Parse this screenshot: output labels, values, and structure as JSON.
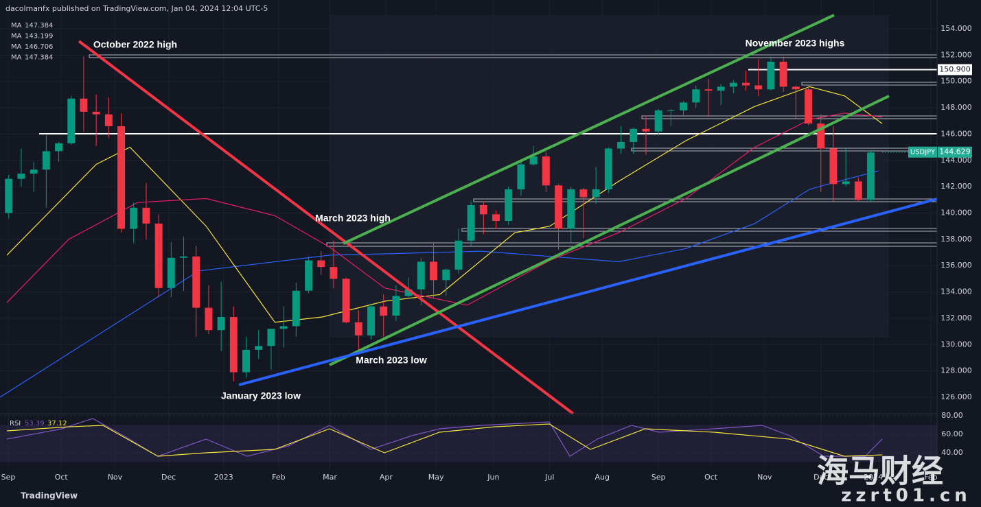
{
  "chart_data": {
    "type": "candlestick",
    "title": "dacolmanfx published on TradingView.com, Jan 04, 2024 12:04 UTC-5",
    "symbol": "USDJPY",
    "last_price": 144.629,
    "price_level": {
      "value": 150.9,
      "label": "150.900"
    },
    "up_color": "#089981",
    "down_color": "#f23645",
    "xlim": [
      -0.7,
      74.3
    ],
    "xticks": [
      {
        "value": -0.04,
        "label": "Sep"
      },
      {
        "value": 4.2,
        "label": "Oct"
      },
      {
        "value": 8.5,
        "label": "Nov"
      },
      {
        "value": 12.8,
        "label": "Dec"
      },
      {
        "value": 17.2,
        "label": "2023"
      },
      {
        "value": 21.6,
        "label": "Feb"
      },
      {
        "value": 25.7,
        "label": "Mar"
      },
      {
        "value": 30.2,
        "label": "Apr"
      },
      {
        "value": 34.2,
        "label": "May"
      },
      {
        "value": 38.8,
        "label": "Jun"
      },
      {
        "value": 43.3,
        "label": "Jul"
      },
      {
        "value": 47.5,
        "label": "Aug"
      },
      {
        "value": 52.0,
        "label": "Sep"
      },
      {
        "value": 56.2,
        "label": "Oct"
      },
      {
        "value": 60.5,
        "label": "Nov"
      },
      {
        "value": 65.0,
        "label": "Dec"
      },
      {
        "value": 69.2,
        "label": "2024"
      },
      {
        "value": 73.8,
        "label": "Feb"
      }
    ],
    "ylim": [
      124.75,
      156.19
    ],
    "yticks": [
      {
        "value": 126,
        "label": "126.000"
      },
      {
        "value": 128,
        "label": "128.000"
      },
      {
        "value": 130,
        "label": "130.000"
      },
      {
        "value": 132,
        "label": "132.000"
      },
      {
        "value": 134,
        "label": "134.000"
      },
      {
        "value": 136,
        "label": "136.000"
      },
      {
        "value": 138,
        "label": "138.000"
      },
      {
        "value": 140,
        "label": "140.000"
      },
      {
        "value": 142,
        "label": "142.000"
      },
      {
        "value": 144,
        "label": "144.000"
      },
      {
        "value": 146,
        "label": "146.000"
      },
      {
        "value": 148,
        "label": "148.000"
      },
      {
        "value": 150,
        "label": "150.000"
      },
      {
        "value": 152,
        "label": "152.000"
      },
      {
        "value": 154,
        "label": "154.000"
      }
    ],
    "candles": {
      "x": [
        0,
        1,
        2,
        3,
        4,
        5,
        6,
        7,
        8,
        9,
        10,
        11,
        12,
        13,
        14,
        15,
        16,
        17,
        18,
        19,
        20,
        21,
        22,
        23,
        24,
        25,
        26,
        27,
        28,
        29,
        30,
        31,
        32,
        33,
        34,
        35,
        36,
        37,
        38,
        39,
        40,
        41,
        42,
        43,
        44,
        45,
        46,
        47,
        48,
        49,
        50,
        51,
        52,
        53,
        54,
        55,
        56,
        57,
        58,
        59,
        60,
        61,
        62,
        63,
        64,
        65,
        66,
        67,
        68,
        69
      ],
      "open": [
        140.0,
        142.6,
        143.0,
        143.3,
        144.7,
        145.3,
        148.7,
        147.7,
        147.5,
        146.6,
        138.8,
        140.4,
        139.2,
        134.3,
        136.6,
        136.7,
        132.8,
        131.1,
        132.1,
        127.9,
        129.6,
        129.9,
        131.2,
        131.4,
        134.1,
        136.4,
        135.9,
        135.0,
        131.7,
        130.7,
        132.9,
        132.2,
        133.7,
        134.2,
        136.3,
        134.9,
        135.7,
        137.9,
        140.6,
        139.9,
        139.4,
        141.8,
        143.7,
        144.3,
        142.1,
        138.8,
        141.8,
        141.2,
        141.8,
        144.9,
        145.4,
        146.4,
        146.2,
        147.8,
        147.8,
        148.4,
        149.4,
        149.3,
        149.6,
        149.9,
        149.7,
        149.4,
        151.5,
        149.6,
        149.4,
        146.8,
        144.9,
        142.2,
        142.4,
        141.0
      ],
      "high": [
        142.9,
        144.9,
        143.9,
        145.9,
        145.4,
        148.9,
        151.9,
        149.0,
        148.8,
        147.6,
        140.8,
        142.3,
        139.9,
        137.8,
        138.2,
        137.5,
        134.5,
        134.8,
        132.9,
        130.6,
        131.1,
        131.2,
        132.9,
        134.7,
        136.7,
        137.1,
        137.9,
        135.1,
        132.6,
        133.1,
        133.8,
        134.5,
        135.1,
        136.6,
        137.8,
        135.8,
        138.8,
        140.9,
        140.9,
        140.2,
        142.0,
        143.9,
        145.1,
        144.7,
        142.2,
        142.0,
        141.9,
        143.5,
        145.0,
        146.6,
        146.5,
        147.4,
        147.9,
        147.9,
        148.5,
        149.7,
        150.2,
        149.8,
        150.1,
        150.8,
        151.7,
        151.9,
        151.9,
        149.7,
        149.7,
        147.5,
        146.6,
        144.9,
        142.7,
        144.8
      ],
      "low": [
        139.6,
        142.0,
        141.6,
        140.4,
        143.9,
        145.2,
        146.2,
        145.1,
        145.7,
        138.5,
        137.7,
        138.0,
        133.6,
        133.6,
        134.1,
        130.6,
        130.8,
        129.5,
        127.2,
        127.5,
        128.9,
        128.1,
        129.8,
        130.6,
        133.9,
        135.3,
        134.3,
        131.6,
        129.6,
        130.4,
        130.6,
        131.8,
        133.5,
        133.0,
        133.5,
        133.7,
        135.4,
        137.5,
        138.4,
        138.8,
        139.1,
        141.3,
        143.6,
        141.6,
        137.2,
        137.7,
        138.1,
        140.7,
        141.5,
        144.5,
        144.5,
        144.4,
        145.9,
        146.6,
        147.3,
        148.0,
        147.3,
        148.2,
        149.1,
        149.3,
        148.9,
        149.3,
        149.2,
        147.2,
        146.7,
        141.6,
        140.9,
        142.0,
        140.9,
        140.8
      ],
      "close": [
        142.6,
        143.0,
        143.3,
        144.7,
        145.3,
        148.7,
        147.7,
        147.5,
        146.6,
        138.8,
        140.4,
        139.2,
        134.3,
        136.6,
        136.7,
        132.8,
        131.1,
        132.1,
        127.9,
        129.6,
        129.9,
        131.2,
        131.4,
        134.1,
        136.4,
        135.9,
        135.0,
        131.7,
        130.7,
        132.9,
        132.2,
        133.7,
        134.2,
        136.3,
        134.9,
        135.7,
        137.9,
        140.6,
        139.9,
        139.4,
        141.8,
        143.7,
        144.3,
        142.1,
        138.8,
        141.8,
        141.2,
        141.8,
        144.9,
        145.4,
        146.4,
        146.2,
        147.8,
        147.8,
        148.4,
        149.4,
        149.3,
        149.6,
        149.9,
        149.7,
        149.4,
        151.5,
        149.6,
        149.4,
        146.8,
        144.9,
        142.2,
        142.4,
        141.0,
        144.6
      ]
    },
    "moving_averages": [
      {
        "name": "MA",
        "color": "#f23645",
        "last": 147.384,
        "x": [],
        "values": []
      },
      {
        "name": "MA",
        "color": "#2962ff",
        "last": 143.199,
        "x": [
          -0.7,
          15.2,
          25.7,
          30.1,
          37.8,
          48.8,
          54.2,
          59.7,
          64.1,
          65.2,
          69.6
        ],
        "values": [
          126.0,
          135.6,
          136.8,
          136.9,
          137.1,
          136.3,
          137.3,
          139.2,
          141.8,
          142.1,
          143.2
        ]
      },
      {
        "name": "MA",
        "color": "#f7e43c",
        "last": 146.706,
        "x": [
          -0.15,
          7.0,
          9.7,
          15.8,
          21.3,
          25.1,
          30.1,
          34.5,
          40.5,
          43.3,
          48.8,
          54.2,
          59.7,
          64.1,
          66.9,
          69.9
        ],
        "values": [
          136.8,
          143.7,
          145.0,
          139.0,
          131.7,
          132.1,
          133.3,
          133.8,
          138.5,
          139.0,
          142.4,
          145.5,
          148.1,
          149.6,
          148.9,
          146.8
        ]
      },
      {
        "name": "MA",
        "color": "#e91e63",
        "last": 147.384,
        "x": [
          -0.15,
          4.8,
          10.3,
          15.8,
          21.3,
          25.7,
          30.1,
          36.7,
          43.3,
          48.8,
          54.2,
          59.7,
          64.1,
          66.9,
          69.9
        ],
        "values": [
          133.2,
          138.0,
          140.8,
          141.1,
          139.8,
          137.4,
          134.3,
          133.0,
          136.4,
          138.5,
          141.1,
          145.0,
          147.1,
          147.6,
          147.3
        ]
      }
    ],
    "annotations": [
      "October 2022 high",
      "November 2023 highs",
      "March 2023 high",
      "March 2023 low",
      "January 2023 low"
    ],
    "rsi": {
      "name": "RSI",
      "value": 53.39,
      "ma_value": 37.12,
      "color": "#7e57c2",
      "ma_color": "#f7e43c",
      "ylim": [
        19.3,
        82.2
      ],
      "band": [
        30,
        70
      ],
      "yticks": [
        {
          "value": 80,
          "label": "80.00"
        },
        {
          "value": 60,
          "label": "60.00"
        },
        {
          "value": 40,
          "label": "40.00"
        }
      ],
      "x": [
        -0.15,
        4.25,
        6.72,
        9.19,
        11.94,
        15.79,
        19.08,
        22.38,
        25.68,
        28.97,
        32.27,
        34.47,
        37.77,
        43.26,
        44.91,
        47.11,
        49.85,
        52.05,
        56.45,
        60.29,
        62.49,
        65.24,
        68.54,
        69.91
      ],
      "values": [
        54.8,
        65.9,
        77.0,
        58.5,
        36.3,
        54.8,
        36.3,
        47.4,
        69.6,
        43.7,
        58.5,
        65.9,
        69.6,
        73.3,
        36.3,
        54.8,
        69.6,
        62.2,
        65.9,
        69.6,
        58.5,
        36.3,
        36.3,
        54.8
      ],
      "ma_x": [
        -0.15,
        4.8,
        7.54,
        11.94,
        15.79,
        21.28,
        25.68,
        30.07,
        34.47,
        38.86,
        43.26,
        46.56,
        50.95,
        56.45,
        62.49,
        66.89,
        69.91
      ],
      "ma_values": [
        63.7,
        68.1,
        69.6,
        36.3,
        40.0,
        43.7,
        65.9,
        40.0,
        62.2,
        68.1,
        71.1,
        43.7,
        65.9,
        62.2,
        54.8,
        36.3,
        37.8
      ]
    },
    "branding": "TradingView",
    "watermark": [
      "海马财经",
      "zzrt01.cn"
    ]
  }
}
